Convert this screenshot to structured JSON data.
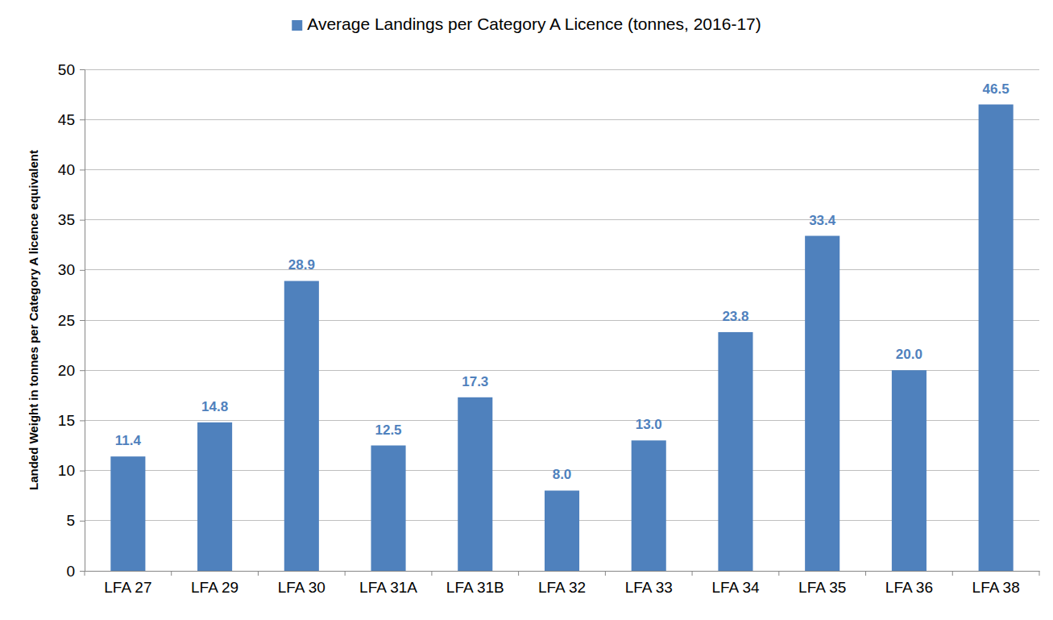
{
  "chart_data": {
    "type": "bar",
    "categories": [
      "LFA 27",
      "LFA 29",
      "LFA 30",
      "LFA 31A",
      "LFA 31B",
      "LFA 32",
      "LFA 33",
      "LFA 34",
      "LFA 35",
      "LFA 36",
      "LFA 38"
    ],
    "series": [
      {
        "name": "Average Landings per Category A Licence (tonnes, 2016-17)",
        "color": "#4f81bd",
        "values": [
          11.4,
          14.8,
          28.9,
          12.5,
          17.3,
          8.0,
          13.0,
          23.8,
          33.4,
          20.0,
          46.5
        ],
        "value_labels": [
          "11.4",
          "14.8",
          "28.9",
          "12.5",
          "17.3",
          "8.0",
          "13.0",
          "23.8",
          "33.4",
          "20.0",
          "46.5"
        ]
      }
    ],
    "y_label": "Landed Weight in tonnes per Category A licence equivalent",
    "ylim": [
      0,
      50
    ],
    "yticks": [
      0,
      5,
      10,
      15,
      20,
      25,
      30,
      35,
      40,
      45,
      50
    ],
    "grid": true,
    "legend": "top",
    "data_labels": true
  }
}
